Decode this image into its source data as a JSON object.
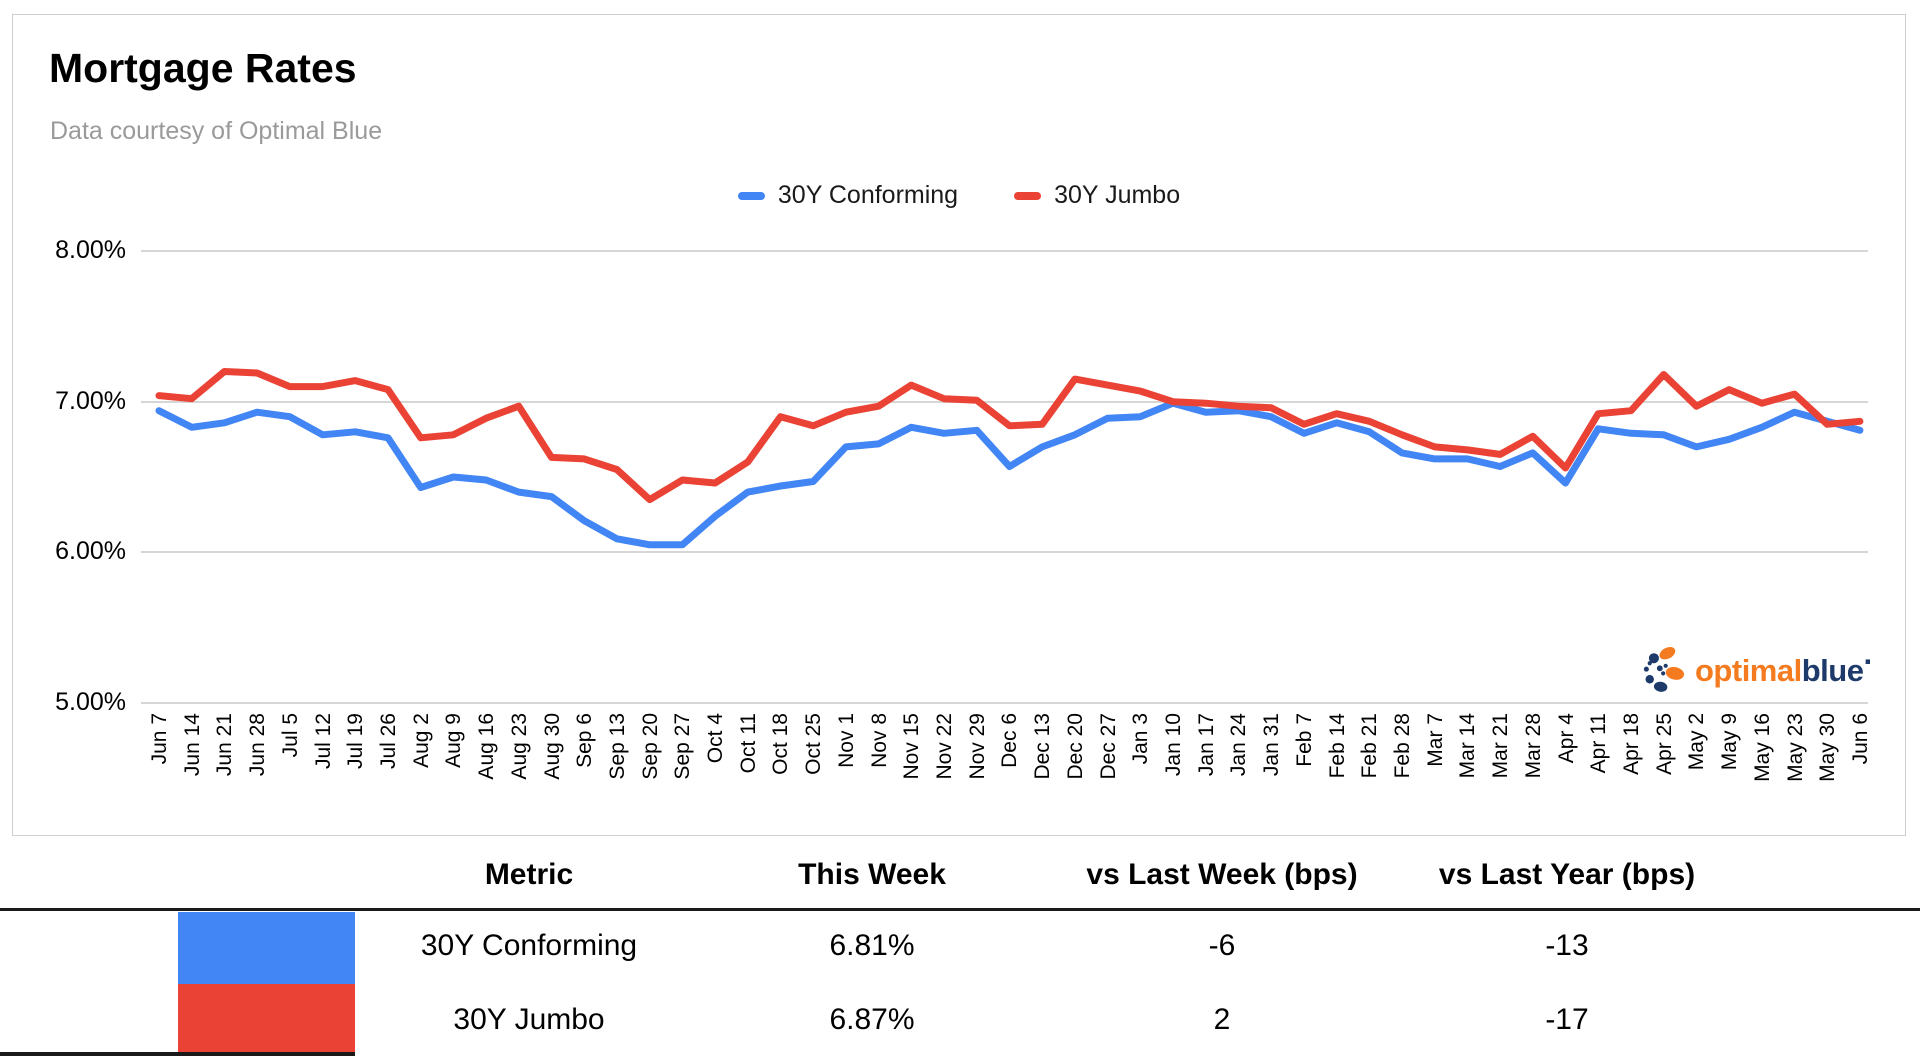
{
  "header": {
    "title": "Mortgage Rates",
    "subtitle": "Data courtesy of Optimal Blue"
  },
  "chart_data": {
    "type": "line",
    "title": "Mortgage Rates",
    "xlabel": "",
    "ylabel": "",
    "ylim": [
      5.0,
      8.0
    ],
    "grid": true,
    "legend_position": "top-center",
    "y_ticks": [
      {
        "label": "8.00%",
        "value": 8.0
      },
      {
        "label": "7.00%",
        "value": 7.0
      },
      {
        "label": "6.00%",
        "value": 6.0
      },
      {
        "label": "5.00%",
        "value": 5.0
      }
    ],
    "x": [
      "Jun 7",
      "Jun 14",
      "Jun 21",
      "Jun 28",
      "Jul 5",
      "Jul 12",
      "Jul 19",
      "Jul 26",
      "Aug 2",
      "Aug 9",
      "Aug 16",
      "Aug 23",
      "Aug 30",
      "Sep 6",
      "Sep 13",
      "Sep 20",
      "Sep 27",
      "Oct 4",
      "Oct 11",
      "Oct 18",
      "Oct 25",
      "Nov 1",
      "Nov 8",
      "Nov 15",
      "Nov 22",
      "Nov 29",
      "Dec 6",
      "Dec 13",
      "Dec 20",
      "Dec 27",
      "Jan 3",
      "Jan 10",
      "Jan 17",
      "Jan 24",
      "Jan 31",
      "Feb 7",
      "Feb 14",
      "Feb 21",
      "Feb 28",
      "Mar 7",
      "Mar 14",
      "Mar 21",
      "Mar 28",
      "Apr 4",
      "Apr 11",
      "Apr 18",
      "Apr 25",
      "May 2",
      "May 9",
      "May 16",
      "May 23",
      "May 30",
      "Jun 6"
    ],
    "series": [
      {
        "name": "30Y Conforming",
        "color": "#4285F4",
        "values": [
          6.94,
          6.83,
          6.86,
          6.93,
          6.9,
          6.78,
          6.8,
          6.76,
          6.43,
          6.5,
          6.48,
          6.4,
          6.37,
          6.21,
          6.09,
          6.05,
          6.05,
          6.24,
          6.4,
          6.44,
          6.47,
          6.7,
          6.72,
          6.83,
          6.79,
          6.81,
          6.57,
          6.7,
          6.78,
          6.89,
          6.9,
          6.99,
          6.93,
          6.94,
          6.9,
          6.79,
          6.86,
          6.8,
          6.66,
          6.62,
          6.62,
          6.57,
          6.66,
          6.46,
          6.82,
          6.79,
          6.78,
          6.7,
          6.75,
          6.83,
          6.93,
          6.87,
          6.81
        ]
      },
      {
        "name": "30Y Jumbo",
        "color": "#EA4335",
        "values": [
          7.04,
          7.02,
          7.2,
          7.19,
          7.1,
          7.1,
          7.14,
          7.08,
          6.76,
          6.78,
          6.89,
          6.97,
          6.63,
          6.62,
          6.55,
          6.35,
          6.48,
          6.46,
          6.6,
          6.9,
          6.84,
          6.93,
          6.97,
          7.11,
          7.02,
          7.01,
          6.84,
          6.85,
          7.15,
          7.11,
          7.07,
          7.0,
          6.99,
          6.97,
          6.96,
          6.85,
          6.92,
          6.87,
          6.78,
          6.7,
          6.68,
          6.65,
          6.77,
          6.56,
          6.92,
          6.94,
          7.18,
          6.97,
          7.08,
          6.99,
          7.05,
          6.85,
          6.87
        ]
      }
    ]
  },
  "logo": {
    "word1": "optimal",
    "word2": "blue",
    "mark": "·",
    "orange": "#F47B20",
    "navy": "#1D3A6B"
  },
  "table": {
    "headers": [
      "Metric",
      "This Week",
      "vs Last Week (bps)",
      "vs Last Year (bps)"
    ],
    "rows": [
      {
        "swatch": "#4285F4",
        "metric": "30Y Conforming",
        "this_week": "6.81%",
        "vs_last_week": "-6",
        "vs_last_year": "-13"
      },
      {
        "swatch": "#EA4335",
        "metric": "30Y Jumbo",
        "this_week": "6.87%",
        "vs_last_week": "2",
        "vs_last_year": "-17"
      }
    ]
  }
}
